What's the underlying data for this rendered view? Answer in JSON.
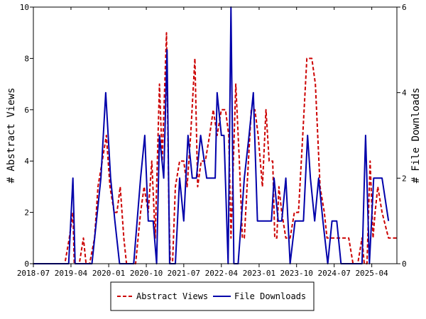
{
  "chart_data": {
    "type": "line",
    "x_start": "2018-07",
    "x_end": "2025-10",
    "x_ticks": [
      "2018-07",
      "2019-04",
      "2020-01",
      "2020-10",
      "2021-07",
      "2022-04",
      "2023-01",
      "2023-10",
      "2024-07",
      "2025-04"
    ],
    "y_left": {
      "label": "# Abstract Views",
      "ylim": [
        0,
        10
      ],
      "ticks": [
        "0",
        "2",
        "4",
        "6",
        "8",
        "10"
      ]
    },
    "y_right": {
      "label": "# File Downloads",
      "ylim": [
        0,
        6
      ],
      "ticks": [
        "0",
        "2",
        "4",
        "6"
      ]
    },
    "legend_position": "bottom",
    "series": [
      {
        "name": "Abstract Views",
        "color": "#cc0000",
        "style": "dashed",
        "axis": "left",
        "points": [
          [
            "2018-07-01",
            0
          ],
          [
            "2019-02-15",
            0
          ],
          [
            "2019-03-20",
            1
          ],
          [
            "2019-04-15",
            2
          ],
          [
            "2019-04-25",
            0
          ],
          [
            "2019-06-01",
            0
          ],
          [
            "2019-07-01",
            1
          ],
          [
            "2019-07-20",
            0
          ],
          [
            "2019-08-15",
            0
          ],
          [
            "2019-09-20",
            1
          ],
          [
            "2019-10-15",
            3
          ],
          [
            "2019-11-15",
            4
          ],
          [
            "2019-12-15",
            5
          ],
          [
            "2020-01-10",
            3
          ],
          [
            "2020-02-10",
            2
          ],
          [
            "2020-03-01",
            2
          ],
          [
            "2020-03-25",
            3
          ],
          [
            "2020-04-20",
            1
          ],
          [
            "2020-05-10",
            0
          ],
          [
            "2020-07-15",
            0
          ],
          [
            "2020-08-20",
            2
          ],
          [
            "2020-09-15",
            3
          ],
          [
            "2020-10-15",
            2
          ],
          [
            "2020-11-10",
            4
          ],
          [
            "2020-12-05",
            1
          ],
          [
            "2021-01-05",
            7
          ],
          [
            "2021-01-25",
            4
          ],
          [
            "2021-02-25",
            9
          ],
          [
            "2021-03-15",
            2
          ],
          [
            "2021-03-25",
            0
          ],
          [
            "2021-04-10",
            0
          ],
          [
            "2021-05-01",
            3
          ],
          [
            "2021-06-01",
            4
          ],
          [
            "2021-07-01",
            4
          ],
          [
            "2021-07-25",
            3
          ],
          [
            "2021-08-20",
            5
          ],
          [
            "2021-09-20",
            8
          ],
          [
            "2021-10-10",
            3
          ],
          [
            "2021-11-05",
            4
          ],
          [
            "2021-12-05",
            4
          ],
          [
            "2022-01-05",
            5
          ],
          [
            "2022-02-01",
            6
          ],
          [
            "2022-03-01",
            5
          ],
          [
            "2022-04-01",
            6
          ],
          [
            "2022-05-01",
            6
          ],
          [
            "2022-05-25",
            5
          ],
          [
            "2022-06-10",
            1
          ],
          [
            "2022-07-15",
            7
          ],
          [
            "2022-08-10",
            4
          ],
          [
            "2022-09-01",
            1
          ],
          [
            "2022-09-15",
            1
          ],
          [
            "2022-10-15",
            4
          ],
          [
            "2022-11-05",
            6
          ],
          [
            "2022-12-01",
            6
          ],
          [
            "2022-12-25",
            5
          ],
          [
            "2023-01-25",
            3
          ],
          [
            "2023-02-20",
            6
          ],
          [
            "2023-03-15",
            4
          ],
          [
            "2023-04-10",
            4
          ],
          [
            "2023-04-25",
            1
          ],
          [
            "2023-05-10",
            1
          ],
          [
            "2023-05-25",
            3
          ],
          [
            "2023-06-15",
            2
          ],
          [
            "2023-07-15",
            1
          ],
          [
            "2023-08-15",
            1
          ],
          [
            "2023-09-15",
            2
          ],
          [
            "2023-10-15",
            2
          ],
          [
            "2023-11-15",
            5
          ],
          [
            "2023-12-15",
            8
          ],
          [
            "2024-01-20",
            8
          ],
          [
            "2024-02-15",
            7
          ],
          [
            "2024-03-20",
            3
          ],
          [
            "2024-04-20",
            2
          ],
          [
            "2024-05-10",
            1
          ],
          [
            "2024-06-01",
            1
          ],
          [
            "2024-07-01",
            1
          ],
          [
            "2024-07-20",
            1
          ],
          [
            "2024-08-15",
            1
          ],
          [
            "2024-09-15",
            1
          ],
          [
            "2024-10-15",
            1
          ],
          [
            "2024-11-15",
            0
          ],
          [
            "2024-12-20",
            0
          ],
          [
            "2025-01-20",
            1
          ],
          [
            "2025-02-05",
            0
          ],
          [
            "2025-02-25",
            0
          ],
          [
            "2025-03-20",
            4
          ],
          [
            "2025-04-10",
            1
          ],
          [
            "2025-04-25",
            2
          ],
          [
            "2025-05-15",
            3
          ],
          [
            "2025-06-15",
            2
          ],
          [
            "2025-08-01",
            1
          ],
          [
            "2025-10-01",
            1
          ]
        ]
      },
      {
        "name": "File Downloads",
        "color": "#0000aa",
        "style": "solid",
        "axis": "right",
        "points": [
          [
            "2018-07-01",
            0
          ],
          [
            "2019-03-15",
            0
          ],
          [
            "2019-04-15",
            2
          ],
          [
            "2019-05-01",
            0
          ],
          [
            "2019-09-01",
            0
          ],
          [
            "2019-11-05",
            2
          ],
          [
            "2019-12-10",
            4
          ],
          [
            "2020-01-15",
            2
          ],
          [
            "2020-02-15",
            1
          ],
          [
            "2020-03-20",
            0
          ],
          [
            "2020-07-01",
            0
          ],
          [
            "2020-08-20",
            2
          ],
          [
            "2020-09-20",
            3
          ],
          [
            "2020-10-15",
            1
          ],
          [
            "2020-11-20",
            1
          ],
          [
            "2020-12-15",
            0
          ],
          [
            "2021-01-05",
            3
          ],
          [
            "2021-02-05",
            2
          ],
          [
            "2021-03-01",
            5
          ],
          [
            "2021-03-20",
            0
          ],
          [
            "2021-05-01",
            0
          ],
          [
            "2021-06-01",
            2
          ],
          [
            "2021-07-01",
            1
          ],
          [
            "2021-08-01",
            3
          ],
          [
            "2021-09-01",
            2
          ],
          [
            "2021-10-01",
            2
          ],
          [
            "2021-11-01",
            3
          ],
          [
            "2021-12-15",
            2
          ],
          [
            "2022-01-15",
            2
          ],
          [
            "2022-02-15",
            2
          ],
          [
            "2022-03-01",
            4
          ],
          [
            "2022-04-01",
            3
          ],
          [
            "2022-04-20",
            3
          ],
          [
            "2022-05-20",
            0
          ],
          [
            "2022-06-10",
            6
          ],
          [
            "2022-07-01",
            0
          ],
          [
            "2022-08-01",
            0
          ],
          [
            "2022-09-15",
            2
          ],
          [
            "2022-10-20",
            3
          ],
          [
            "2022-11-20",
            4
          ],
          [
            "2022-12-20",
            1
          ],
          [
            "2023-01-20",
            1
          ],
          [
            "2023-02-20",
            1
          ],
          [
            "2023-04-01",
            1
          ],
          [
            "2023-04-20",
            2
          ],
          [
            "2023-05-20",
            1
          ],
          [
            "2023-06-15",
            1
          ],
          [
            "2023-07-15",
            2
          ],
          [
            "2023-08-15",
            0
          ],
          [
            "2023-09-20",
            1
          ],
          [
            "2023-10-20",
            1
          ],
          [
            "2023-11-20",
            1
          ],
          [
            "2023-12-20",
            3
          ],
          [
            "2024-01-10",
            2
          ],
          [
            "2024-02-10",
            1
          ],
          [
            "2024-03-10",
            2
          ],
          [
            "2024-04-10",
            1
          ],
          [
            "2024-05-15",
            0
          ],
          [
            "2024-06-15",
            1
          ],
          [
            "2024-07-20",
            1
          ],
          [
            "2024-08-20",
            0
          ],
          [
            "2024-09-20",
            0
          ],
          [
            "2025-01-20",
            0
          ],
          [
            "2025-02-15",
            3
          ],
          [
            "2025-03-15",
            0
          ],
          [
            "2025-04-15",
            2
          ],
          [
            "2025-05-15",
            2
          ],
          [
            "2025-06-15",
            2
          ],
          [
            "2025-08-01",
            1
          ]
        ]
      }
    ]
  }
}
